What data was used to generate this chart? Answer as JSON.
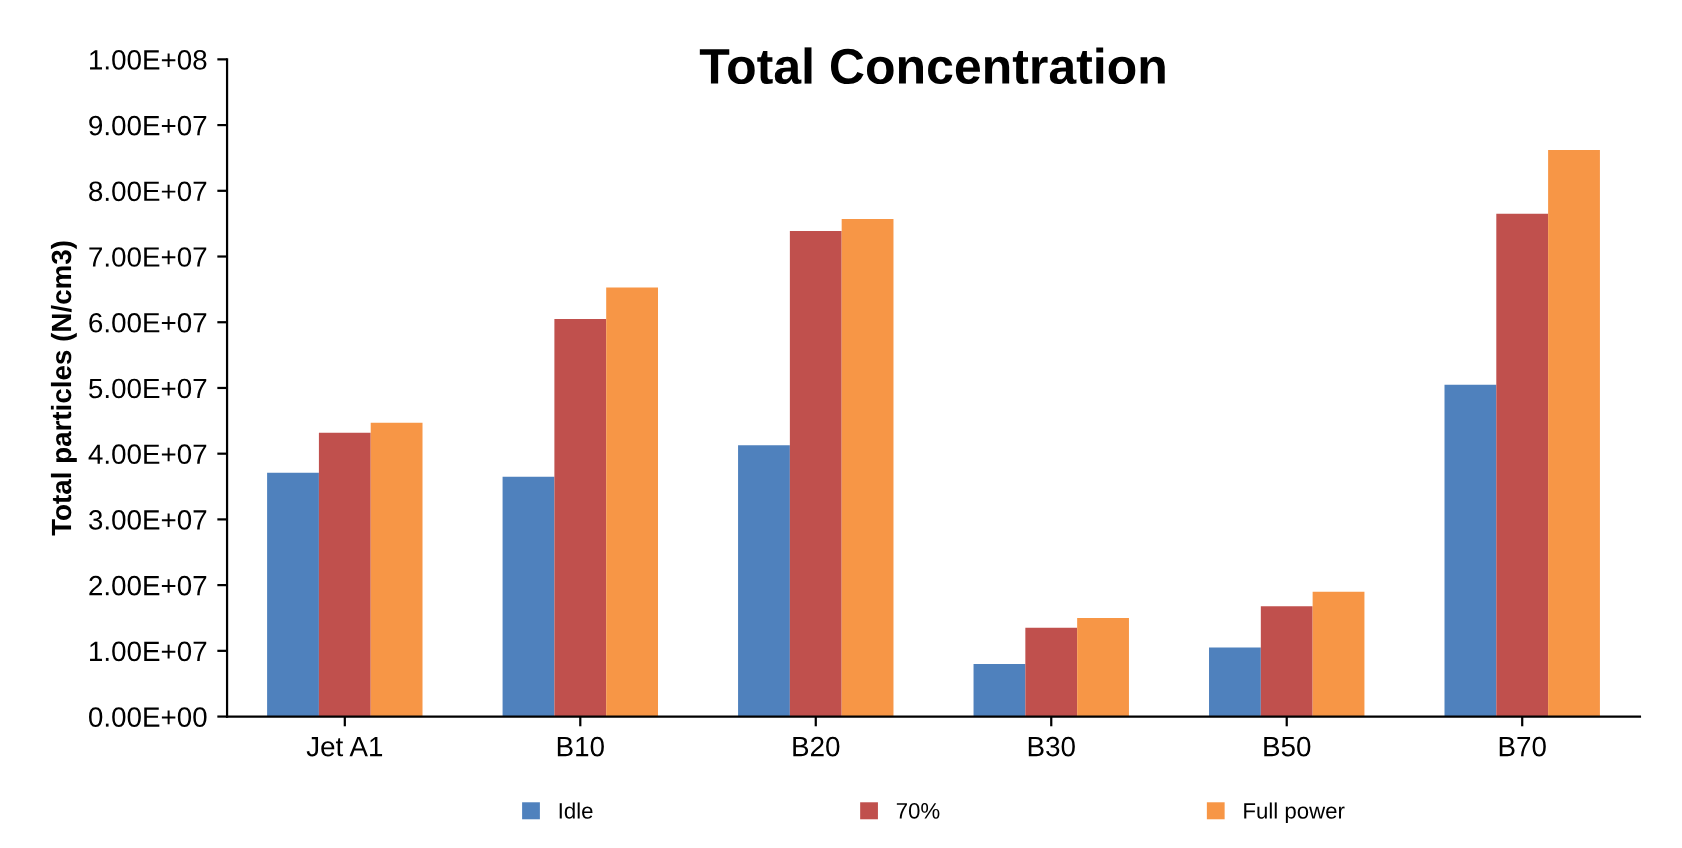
{
  "chart_data": {
    "type": "bar",
    "title": "Total Concentration",
    "ylabel": "Total particles (N/cm3)",
    "categories": [
      "Jet A1",
      "B10",
      "B20",
      "B30",
      "B50",
      "B70"
    ],
    "series": [
      {
        "name": "Idle",
        "color": "#4f81bd",
        "values": [
          37100000,
          36500000,
          41300000,
          8000000,
          10500000,
          50500000
        ]
      },
      {
        "name": "70%",
        "color": "#c0504d",
        "values": [
          43200000,
          60500000,
          73900000,
          13500000,
          16800000,
          76500000
        ]
      },
      {
        "name": "Full power",
        "color": "#f79646",
        "values": [
          44700000,
          65300000,
          75700000,
          15000000,
          19000000,
          86200000
        ]
      }
    ],
    "ylim": [
      0,
      100000000
    ],
    "yticks": [
      {
        "value": 0,
        "label": "0.00E+00"
      },
      {
        "value": 10000000,
        "label": "1.00E+07"
      },
      {
        "value": 20000000,
        "label": "2.00E+07"
      },
      {
        "value": 30000000,
        "label": "3.00E+07"
      },
      {
        "value": 40000000,
        "label": "4.00E+07"
      },
      {
        "value": 50000000,
        "label": "5.00E+07"
      },
      {
        "value": 60000000,
        "label": "6.00E+07"
      },
      {
        "value": 70000000,
        "label": "7.00E+07"
      },
      {
        "value": 80000000,
        "label": "8.00E+07"
      },
      {
        "value": 90000000,
        "label": "9.00E+07"
      },
      {
        "value": 100000000,
        "label": "1.00E+08"
      }
    ],
    "grid": false,
    "legend": "bottom"
  }
}
